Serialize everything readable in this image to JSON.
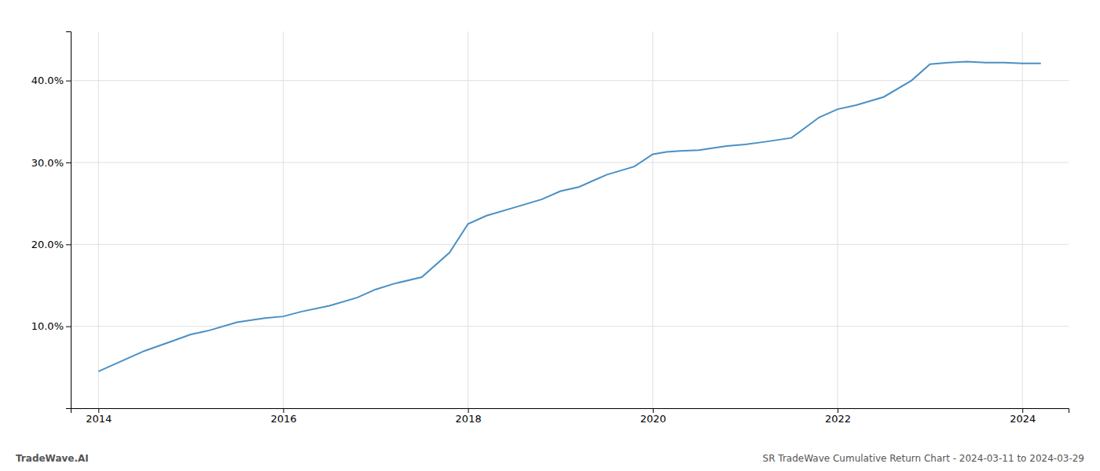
{
  "chart_data": {
    "type": "line",
    "x": [
      2014.0,
      2014.2,
      2014.5,
      2014.8,
      2015.0,
      2015.2,
      2015.5,
      2015.8,
      2016.0,
      2016.2,
      2016.5,
      2016.8,
      2017.0,
      2017.2,
      2017.5,
      2017.8,
      2018.0,
      2018.2,
      2018.5,
      2018.8,
      2019.0,
      2019.2,
      2019.5,
      2019.8,
      2020.0,
      2020.15,
      2020.3,
      2020.5,
      2020.8,
      2021.0,
      2021.2,
      2021.5,
      2021.8,
      2022.0,
      2022.2,
      2022.5,
      2022.8,
      2023.0,
      2023.2,
      2023.4,
      2023.6,
      2023.8,
      2024.0,
      2024.2
    ],
    "values": [
      4.5,
      5.5,
      7.0,
      8.2,
      9.0,
      9.5,
      10.5,
      11.0,
      11.2,
      11.8,
      12.5,
      13.5,
      14.5,
      15.2,
      16.0,
      19.0,
      22.5,
      23.5,
      24.5,
      25.5,
      26.5,
      27.0,
      28.5,
      29.5,
      31.0,
      31.3,
      31.4,
      31.5,
      32.0,
      32.2,
      32.5,
      33.0,
      35.5,
      36.5,
      37.0,
      38.0,
      40.0,
      42.0,
      42.2,
      42.3,
      42.2,
      42.2,
      42.1,
      42.1
    ],
    "color": "#4a90c4",
    "xlim": [
      2013.7,
      2024.5
    ],
    "ylim": [
      0,
      46
    ],
    "xticks": [
      2014,
      2016,
      2018,
      2020,
      2022,
      2024
    ],
    "yticks": [
      {
        "value": 10.0,
        "label": "10.0%"
      },
      {
        "value": 20.0,
        "label": "20.0%"
      },
      {
        "value": 30.0,
        "label": "30.0%"
      },
      {
        "value": 40.0,
        "label": "40.0%"
      }
    ],
    "grid": true,
    "annotations": [
      "TradeWave.AI",
      "SR TradeWave Cumulative Return Chart - 2024-03-11 to 2024-03-29"
    ]
  }
}
